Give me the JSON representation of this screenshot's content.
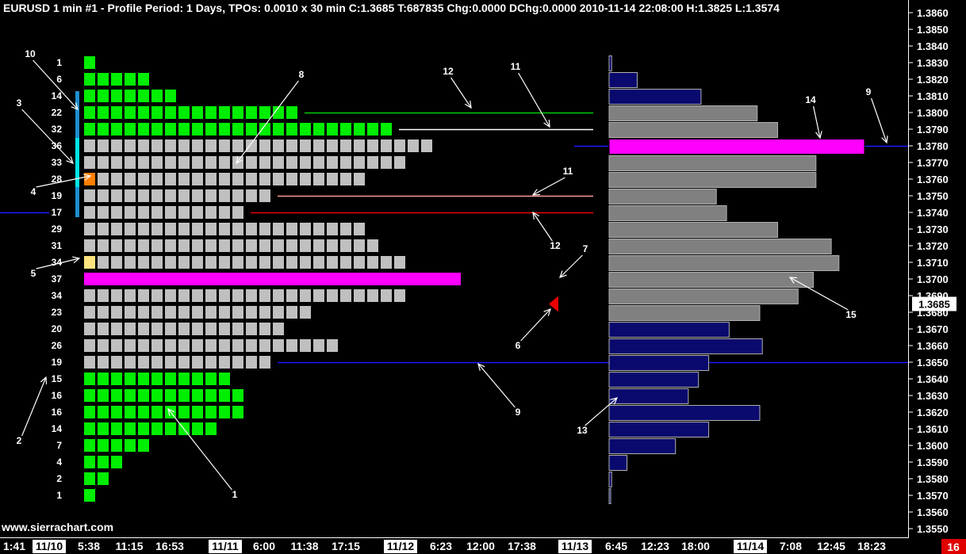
{
  "header": {
    "text": "EURUSD  1 min   #1 - Profile Period: 1 Days, TPOs: 0.0010 x 30 min   C:1.3685 T:687835 Chg:0.0000 DChg:0.0000 2010-11-14 22:08:00 H:1.3825 L:1.3574"
  },
  "watermark": "www.sierrachart.com",
  "current_price_label": "1.3685",
  "corner_badge": "16",
  "colors": {
    "background": "#000000",
    "tpo_value_area": "#c0c0c0",
    "tpo_outside": "#00ee00",
    "poc": "#ff00ff",
    "volume_outside": "#0a0a6e",
    "volume_value_area": "#808080",
    "initial_balance": "#1e8fd0",
    "ib_extension": "#00e5e5",
    "opening_tpo": "#ff7f00",
    "close_tpo": "#ffe580",
    "close_marker": "#ee0000"
  },
  "chart_data": {
    "type": "market-profile",
    "symbol": "EURUSD",
    "y_axis": {
      "ticks": [
        "1.3860",
        "1.3850",
        "1.3840",
        "1.3830",
        "1.3820",
        "1.3810",
        "1.3800",
        "1.3790",
        "1.3780",
        "1.3770",
        "1.3760",
        "1.3750",
        "1.3740",
        "1.3730",
        "1.3720",
        "1.3710",
        "1.3700",
        "1.3690",
        "1.3680",
        "1.3670",
        "1.3660",
        "1.3650",
        "1.3640",
        "1.3630",
        "1.3620",
        "1.3610",
        "1.3600",
        "1.3590",
        "1.3580",
        "1.3570",
        "1.3560",
        "1.3550"
      ],
      "range": [
        1.355,
        1.386
      ]
    },
    "x_axis": {
      "ticks": [
        {
          "label": "1:41",
          "hl": false
        },
        {
          "label": "11/10",
          "hl": true
        },
        {
          "label": "5:38",
          "hl": false
        },
        {
          "label": "11:15",
          "hl": false
        },
        {
          "label": "16:53",
          "hl": false
        },
        {
          "label": "11/11",
          "hl": true
        },
        {
          "label": "6:00",
          "hl": false
        },
        {
          "label": "11:38",
          "hl": false
        },
        {
          "label": "17:15",
          "hl": false
        },
        {
          "label": "11/12",
          "hl": true
        },
        {
          "label": "6:23",
          "hl": false
        },
        {
          "label": "12:00",
          "hl": false
        },
        {
          "label": "17:38",
          "hl": false
        },
        {
          "label": "11/13",
          "hl": true
        },
        {
          "label": "6:45",
          "hl": false
        },
        {
          "label": "12:23",
          "hl": false
        },
        {
          "label": "18:00",
          "hl": false
        },
        {
          "label": "11/14",
          "hl": true
        },
        {
          "label": "7:08",
          "hl": false
        },
        {
          "label": "12:45",
          "hl": false
        },
        {
          "label": "18:23",
          "hl": false
        }
      ]
    },
    "profile": [
      {
        "price": 1.383,
        "count": 1,
        "tpos": 1,
        "va": false
      },
      {
        "price": 1.382,
        "count": 6,
        "tpos": 5,
        "va": false
      },
      {
        "price": 1.381,
        "count": 14,
        "tpos": 7,
        "va": false
      },
      {
        "price": 1.38,
        "count": 22,
        "tpos": 16,
        "va": false
      },
      {
        "price": 1.379,
        "count": 32,
        "tpos": 23,
        "va": false
      },
      {
        "price": 1.378,
        "count": 36,
        "tpos": 26,
        "va": true
      },
      {
        "price": 1.377,
        "count": 33,
        "tpos": 24,
        "va": true
      },
      {
        "price": 1.376,
        "count": 28,
        "tpos": 21,
        "va": true
      },
      {
        "price": 1.375,
        "count": 19,
        "tpos": 14,
        "va": true
      },
      {
        "price": 1.374,
        "count": 17,
        "tpos": 12,
        "va": true
      },
      {
        "price": 1.373,
        "count": 29,
        "tpos": 21,
        "va": true
      },
      {
        "price": 1.372,
        "count": 31,
        "tpos": 22,
        "va": true
      },
      {
        "price": 1.371,
        "count": 34,
        "tpos": 24,
        "va": true
      },
      {
        "price": 1.37,
        "count": 37,
        "tpos": 27,
        "va": true,
        "poc": true
      },
      {
        "price": 1.369,
        "count": 34,
        "tpos": 24,
        "va": true
      },
      {
        "price": 1.368,
        "count": 23,
        "tpos": 17,
        "va": true
      },
      {
        "price": 1.367,
        "count": 20,
        "tpos": 15,
        "va": true
      },
      {
        "price": 1.366,
        "count": 26,
        "tpos": 19,
        "va": true
      },
      {
        "price": 1.365,
        "count": 19,
        "tpos": 14,
        "va": true
      },
      {
        "price": 1.364,
        "count": 15,
        "tpos": 11,
        "va": false
      },
      {
        "price": 1.363,
        "count": 16,
        "tpos": 12,
        "va": false
      },
      {
        "price": 1.362,
        "count": 16,
        "tpos": 12,
        "va": false
      },
      {
        "price": 1.361,
        "count": 14,
        "tpos": 10,
        "va": false
      },
      {
        "price": 1.36,
        "count": 7,
        "tpos": 5,
        "va": false
      },
      {
        "price": 1.359,
        "count": 4,
        "tpos": 3,
        "va": false
      },
      {
        "price": 1.358,
        "count": 2,
        "tpos": 2,
        "va": false
      },
      {
        "price": 1.357,
        "count": 1,
        "tpos": 1,
        "va": false
      }
    ],
    "volume_profile": [
      {
        "price": 1.383,
        "volume": 0.01,
        "va": false
      },
      {
        "price": 1.382,
        "volume": 0.11,
        "va": false
      },
      {
        "price": 1.381,
        "volume": 0.36,
        "va": false
      },
      {
        "price": 1.38,
        "volume": 0.58,
        "va": true
      },
      {
        "price": 1.379,
        "volume": 0.66,
        "va": true
      },
      {
        "price": 1.378,
        "volume": 1.0,
        "va": true,
        "poc": true
      },
      {
        "price": 1.377,
        "volume": 0.81,
        "va": true
      },
      {
        "price": 1.376,
        "volume": 0.81,
        "va": true
      },
      {
        "price": 1.375,
        "volume": 0.42,
        "va": true
      },
      {
        "price": 1.374,
        "volume": 0.46,
        "va": true
      },
      {
        "price": 1.373,
        "volume": 0.66,
        "va": true
      },
      {
        "price": 1.372,
        "volume": 0.87,
        "va": true
      },
      {
        "price": 1.371,
        "volume": 0.9,
        "va": true
      },
      {
        "price": 1.37,
        "volume": 0.8,
        "va": true
      },
      {
        "price": 1.369,
        "volume": 0.74,
        "va": true
      },
      {
        "price": 1.368,
        "volume": 0.59,
        "va": true
      },
      {
        "price": 1.367,
        "volume": 0.47,
        "va": false
      },
      {
        "price": 1.366,
        "volume": 0.6,
        "va": false
      },
      {
        "price": 1.365,
        "volume": 0.39,
        "va": false
      },
      {
        "price": 1.364,
        "volume": 0.35,
        "va": false
      },
      {
        "price": 1.363,
        "volume": 0.31,
        "va": false
      },
      {
        "price": 1.362,
        "volume": 0.59,
        "va": false
      },
      {
        "price": 1.361,
        "volume": 0.39,
        "va": false
      },
      {
        "price": 1.36,
        "volume": 0.26,
        "va": false
      },
      {
        "price": 1.359,
        "volume": 0.07,
        "va": false
      },
      {
        "price": 1.358,
        "volume": 0.01,
        "va": false
      },
      {
        "price": 1.357,
        "volume": 0.005,
        "va": false
      }
    ],
    "opening_tpo_price": 1.376,
    "close_tpo_price": 1.371,
    "current_price": 1.3685,
    "extension_tpo_price": 1.37,
    "initial_balance": {
      "high": 1.381,
      "low": 1.374
    },
    "ib_extension": {
      "high": 1.378,
      "low": 1.376
    },
    "levels": [
      {
        "name": "tpo-va-high",
        "price": 1.38,
        "color": "#00cc00",
        "from": "tpo"
      },
      {
        "name": "tpo-va-high-prior",
        "price": 1.379,
        "color": "#ffffff",
        "from": "tpo"
      },
      {
        "name": "tpo-va-low-prior",
        "price": 1.375,
        "color": "#ff9999",
        "from": "tpo"
      },
      {
        "name": "tpo-va-low",
        "price": 1.374,
        "color": "#ee0000",
        "from": "tpo"
      },
      {
        "name": "volume-poc-line",
        "price": 1.378,
        "color": "#1a1aff",
        "from": "volume"
      },
      {
        "name": "blue-line-650",
        "price": 1.365,
        "color": "#1a1aff",
        "from": "tpo"
      },
      {
        "name": "blue-line-left-740",
        "price": 1.374,
        "color": "#1a1aff",
        "from": "left"
      }
    ],
    "annotations": [
      {
        "label": "1",
        "price": 1.3573
      },
      {
        "label": "2",
        "price": 1.3604
      },
      {
        "label": "3",
        "price": 1.3807
      },
      {
        "label": "4",
        "price": 1.3756
      },
      {
        "label": "5",
        "price": 1.3702
      },
      {
        "label": "6",
        "price": 1.3667
      },
      {
        "label": "7",
        "price": 1.3717
      },
      {
        "label": "8",
        "price": 1.3822
      },
      {
        "label": "9",
        "price": 1.3812
      },
      {
        "label": "9",
        "price": 1.3624
      },
      {
        "label": "10",
        "price": 1.3834
      },
      {
        "label": "11",
        "price": 1.3826
      },
      {
        "label": "11",
        "price": 1.3764
      },
      {
        "label": "12",
        "price": 1.3822
      },
      {
        "label": "12",
        "price": 1.3723
      },
      {
        "label": "13",
        "price": 1.3608
      },
      {
        "label": "14",
        "price": 1.3807
      },
      {
        "label": "15",
        "price": 1.3678
      }
    ]
  }
}
